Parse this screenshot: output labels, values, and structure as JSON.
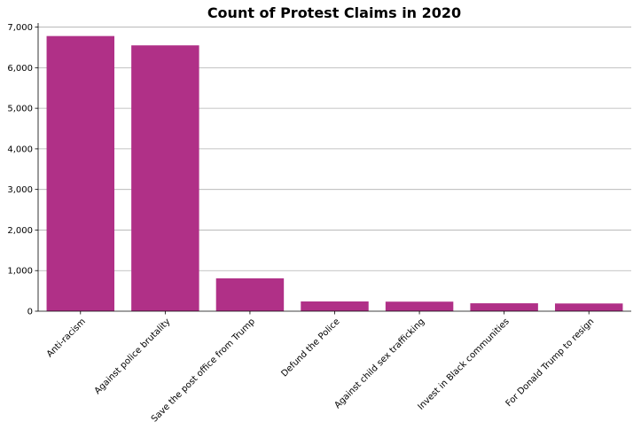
{
  "chart_data": {
    "type": "bar",
    "title": "Count of Protest Claims in 2020",
    "xlabel": "",
    "ylabel": "",
    "categories": [
      "Anti-racism",
      "Against police brutality",
      "Save the post office from Trump",
      "Defund the Police",
      "Against child sex trafficking",
      "Invest in Black communities",
      "For Donald Trump to resign"
    ],
    "values": [
      6780,
      6550,
      810,
      240,
      235,
      195,
      190
    ],
    "ylim": [
      0,
      7100
    ],
    "yticks": [
      0,
      1000,
      2000,
      3000,
      4000,
      5000,
      6000,
      7000
    ],
    "ytick_labels": [
      "0",
      "1,000",
      "2,000",
      "3,000",
      "4,000",
      "5,000",
      "6,000",
      "7,000"
    ],
    "grid": true,
    "bar_color": "#b03087"
  }
}
